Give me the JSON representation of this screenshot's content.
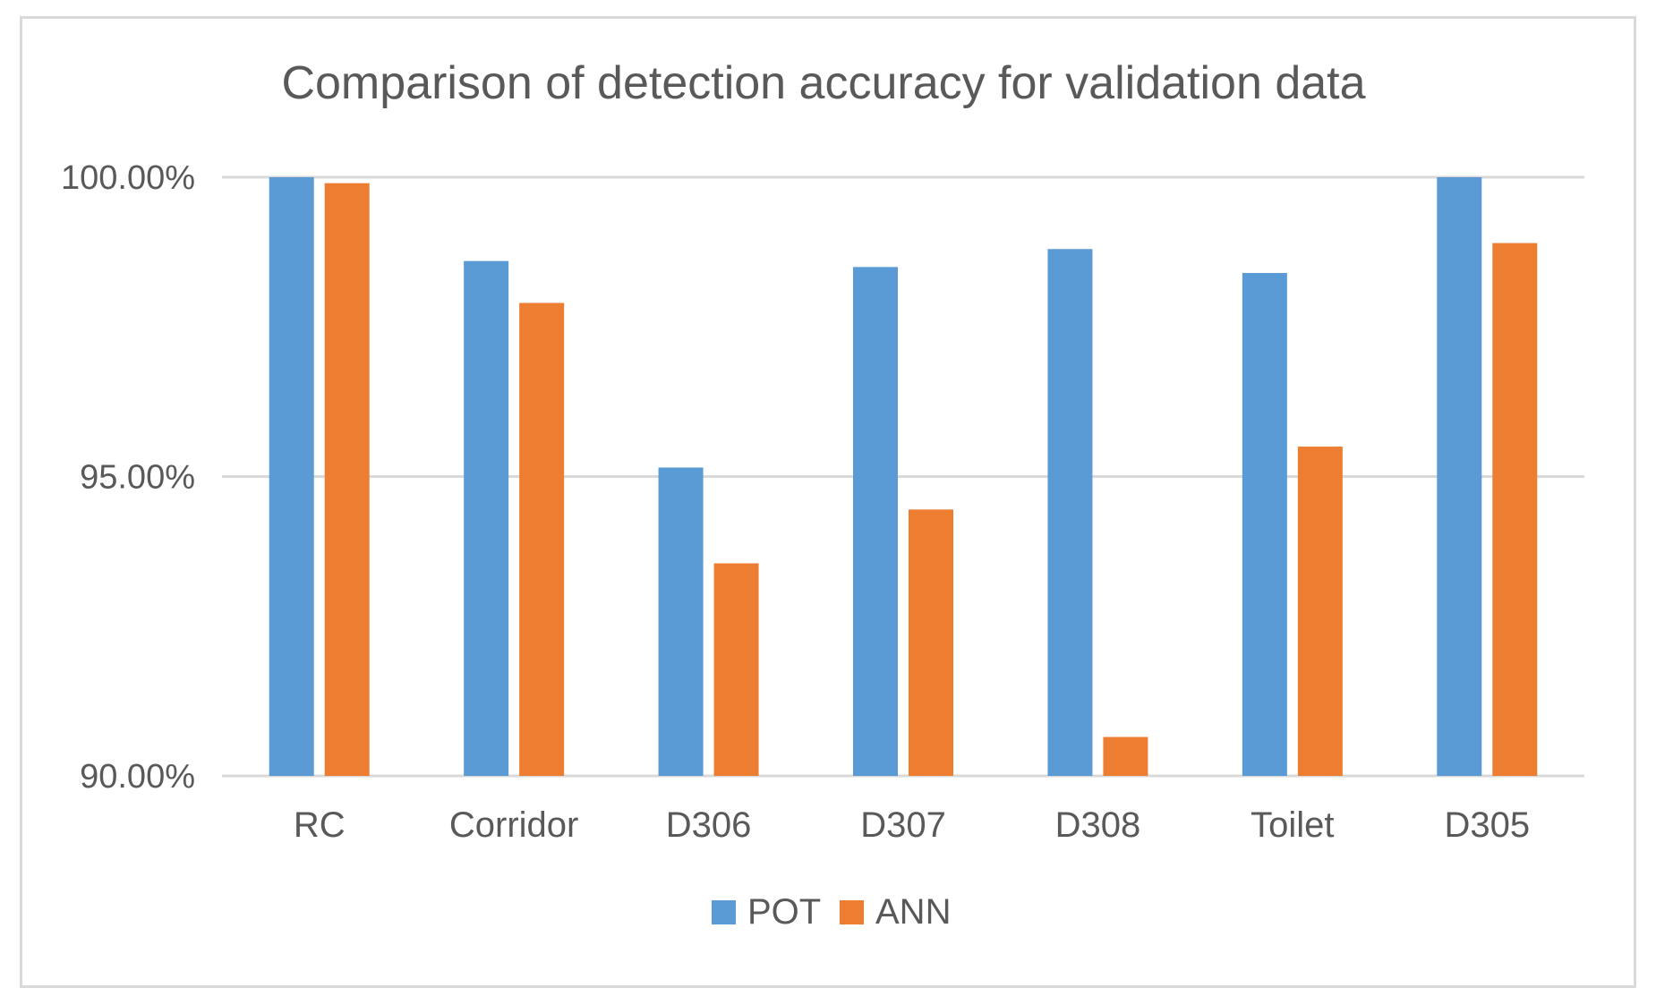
{
  "chart_data": {
    "type": "bar",
    "title": "Comparison of detection accuracy for validation data",
    "xlabel": "",
    "ylabel": "",
    "categories": [
      "RC",
      "Corridor",
      "D306",
      "D307",
      "D308",
      "Toilet",
      "D305"
    ],
    "series": [
      {
        "name": "POT",
        "color": "#5b9bd5",
        "values": [
          100.0,
          98.6,
          95.15,
          98.5,
          98.8,
          98.4,
          100.0
        ]
      },
      {
        "name": "ANN",
        "color": "#ed7d31",
        "values": [
          99.9,
          97.9,
          93.55,
          94.45,
          90.65,
          95.5,
          98.9
        ]
      }
    ],
    "ylim": [
      90,
      100
    ],
    "yticks": [
      90,
      95,
      100
    ],
    "ytick_labels": [
      "90.00%",
      "95.00%",
      "100.00%"
    ],
    "grid": true,
    "legend_position": "bottom"
  }
}
